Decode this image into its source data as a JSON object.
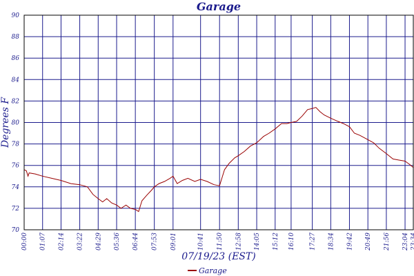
{
  "chart_data": {
    "type": "line",
    "title": "Garage",
    "xlabel": "07/19/23 (EST)",
    "ylabel": "Degrees F",
    "ylim": [
      70,
      90
    ],
    "yticks": [
      70,
      72,
      74,
      76,
      78,
      80,
      82,
      84,
      86,
      88,
      90
    ],
    "xlim": [
      0,
      1414
    ],
    "xticks": [
      {
        "minute": 0,
        "label": "00:00"
      },
      {
        "minute": 67,
        "label": "01:07"
      },
      {
        "minute": 134,
        "label": "02:14"
      },
      {
        "minute": 202,
        "label": "03:22"
      },
      {
        "minute": 269,
        "label": "04:29"
      },
      {
        "minute": 336,
        "label": "05:36"
      },
      {
        "minute": 404,
        "label": "06:44"
      },
      {
        "minute": 473,
        "label": "07:53"
      },
      {
        "minute": 541,
        "label": "09:01"
      },
      {
        "minute": 641,
        "label": "10:41"
      },
      {
        "minute": 710,
        "label": "11:50"
      },
      {
        "minute": 778,
        "label": "12:58"
      },
      {
        "minute": 845,
        "label": "14:05"
      },
      {
        "minute": 912,
        "label": "15:12"
      },
      {
        "minute": 970,
        "label": "16:10"
      },
      {
        "minute": 1047,
        "label": "17:27"
      },
      {
        "minute": 1114,
        "label": "18:34"
      },
      {
        "minute": 1182,
        "label": "19:42"
      },
      {
        "minute": 1249,
        "label": "20:49"
      },
      {
        "minute": 1316,
        "label": "21:56"
      },
      {
        "minute": 1384,
        "label": "23:04"
      },
      {
        "minute": 1414,
        "label": "23:34"
      }
    ],
    "grid": true,
    "legend_position": "bottom",
    "series": [
      {
        "name": "Garage",
        "color": "#990000",
        "points": [
          [
            0,
            75.6
          ],
          [
            8,
            75.5
          ],
          [
            14,
            75.0
          ],
          [
            18,
            75.3
          ],
          [
            40,
            75.2
          ],
          [
            67,
            75.0
          ],
          [
            100,
            74.8
          ],
          [
            134,
            74.6
          ],
          [
            170,
            74.3
          ],
          [
            202,
            74.2
          ],
          [
            230,
            74.0
          ],
          [
            250,
            73.3
          ],
          [
            269,
            72.9
          ],
          [
            285,
            72.6
          ],
          [
            300,
            72.9
          ],
          [
            318,
            72.5
          ],
          [
            336,
            72.3
          ],
          [
            352,
            72.0
          ],
          [
            370,
            72.3
          ],
          [
            386,
            72.0
          ],
          [
            404,
            71.9
          ],
          [
            416,
            71.7
          ],
          [
            428,
            72.7
          ],
          [
            445,
            73.2
          ],
          [
            463,
            73.7
          ],
          [
            473,
            74.0
          ],
          [
            490,
            74.3
          ],
          [
            510,
            74.5
          ],
          [
            530,
            74.8
          ],
          [
            541,
            75.0
          ],
          [
            556,
            74.3
          ],
          [
            575,
            74.6
          ],
          [
            595,
            74.8
          ],
          [
            620,
            74.5
          ],
          [
            641,
            74.7
          ],
          [
            665,
            74.5
          ],
          [
            690,
            74.2
          ],
          [
            710,
            74.1
          ],
          [
            728,
            75.6
          ],
          [
            745,
            76.2
          ],
          [
            765,
            76.7
          ],
          [
            778,
            76.9
          ],
          [
            800,
            77.3
          ],
          [
            822,
            77.8
          ],
          [
            845,
            78.1
          ],
          [
            870,
            78.7
          ],
          [
            890,
            79.0
          ],
          [
            912,
            79.4
          ],
          [
            935,
            79.9
          ],
          [
            955,
            79.9
          ],
          [
            970,
            80.0
          ],
          [
            990,
            80.1
          ],
          [
            1010,
            80.6
          ],
          [
            1030,
            81.2
          ],
          [
            1047,
            81.3
          ],
          [
            1060,
            81.4
          ],
          [
            1075,
            81.0
          ],
          [
            1090,
            80.7
          ],
          [
            1114,
            80.4
          ],
          [
            1140,
            80.1
          ],
          [
            1160,
            79.9
          ],
          [
            1182,
            79.6
          ],
          [
            1200,
            79.0
          ],
          [
            1220,
            78.8
          ],
          [
            1249,
            78.4
          ],
          [
            1270,
            78.1
          ],
          [
            1290,
            77.6
          ],
          [
            1316,
            77.1
          ],
          [
            1340,
            76.6
          ],
          [
            1360,
            76.5
          ],
          [
            1384,
            76.4
          ],
          [
            1400,
            76.1
          ],
          [
            1414,
            75.8
          ]
        ]
      }
    ]
  }
}
